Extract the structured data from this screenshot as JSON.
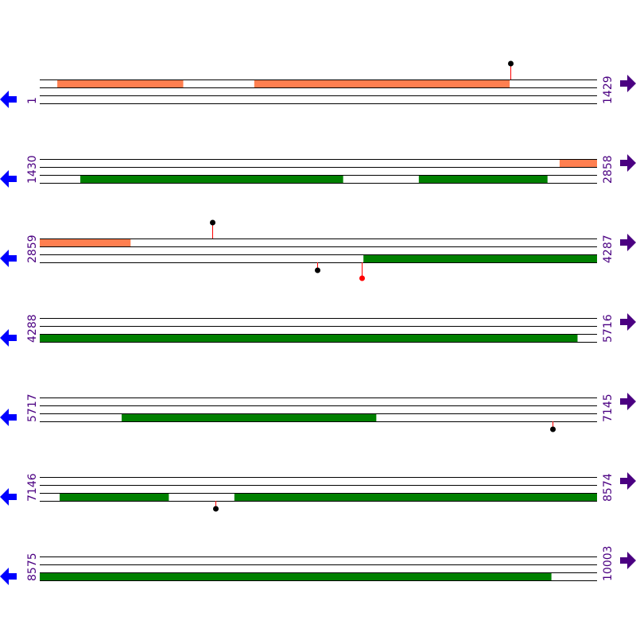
{
  "colors": {
    "line": "#000000",
    "forward_feature": "#ff7f50",
    "reverse_feature": "#008000",
    "marker_stem": "#ff0000",
    "left_arrow": "#0000ff",
    "right_arrow": "#4b0082",
    "label": "#4b0082"
  },
  "rows": [
    {
      "start": 1,
      "end": 1429,
      "forward": [
        [
          46,
          368
        ],
        [
          551,
          1205
        ]
      ],
      "reverse": [],
      "markers": [
        {
          "pos": 1207,
          "side": "top",
          "dot": "#000000"
        }
      ]
    },
    {
      "start": 1430,
      "end": 2858,
      "forward": [
        [
          2763,
          2858
        ]
      ],
      "reverse": [
        [
          1534,
          2207
        ],
        [
          2402,
          2731
        ]
      ],
      "markers": []
    },
    {
      "start": 2859,
      "end": 4287,
      "forward": [
        [
          2859,
          3091
        ]
      ],
      "reverse": [
        [
          3689,
          4287
        ]
      ],
      "markers": [
        {
          "pos": 3301,
          "side": "top",
          "dot": "#000000"
        },
        {
          "pos": 3570,
          "side": "bottom",
          "dot": "#000000"
        },
        {
          "pos": 3685,
          "side": "bottom-long",
          "dot": "#ff0000"
        }
      ]
    },
    {
      "start": 4288,
      "end": 5716,
      "forward": [],
      "reverse": [
        [
          4288,
          5666
        ]
      ],
      "markers": []
    },
    {
      "start": 5717,
      "end": 7145,
      "forward": [],
      "reverse": [
        [
          5927,
          6579
        ]
      ],
      "markers": [
        {
          "pos": 7032,
          "side": "bottom",
          "dot": "#000000"
        }
      ]
    },
    {
      "start": 7146,
      "end": 8574,
      "forward": [],
      "reverse": [
        [
          7197,
          7476
        ],
        [
          7645,
          8574
        ]
      ],
      "markers": [
        {
          "pos": 7596,
          "side": "bottom",
          "dot": "#000000"
        }
      ]
    },
    {
      "start": 8575,
      "end": 10003,
      "forward": [],
      "reverse": [
        [
          8575,
          9886
        ]
      ],
      "markers": []
    }
  ]
}
